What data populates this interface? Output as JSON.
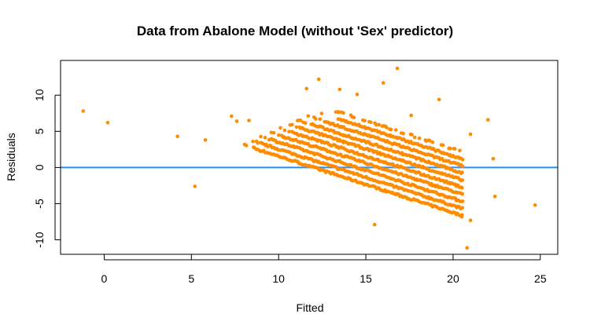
{
  "chart_data": {
    "type": "scatter",
    "title": "Data from Abalone Model (without 'Sex' predictor)",
    "xlabel": "Fitted",
    "ylabel": "Residuals",
    "xlim": [
      -2.5,
      26
    ],
    "ylim": [
      -12,
      14.8
    ],
    "x_ticks": [
      0,
      5,
      10,
      15,
      20,
      25
    ],
    "y_ticks": [
      -10,
      -5,
      0,
      5,
      10
    ],
    "grid": false,
    "point_color": "#ff8c00",
    "reference_line": {
      "y": 0,
      "color": "#1e90ff"
    },
    "outliers": [
      [
        -1.2,
        7.8
      ],
      [
        0.2,
        6.2
      ],
      [
        4.2,
        4.3
      ],
      [
        5.2,
        -2.6
      ],
      [
        5.8,
        3.8
      ],
      [
        7.3,
        7.1
      ],
      [
        7.6,
        6.4
      ],
      [
        8.3,
        6.5
      ],
      [
        11.6,
        10.9
      ],
      [
        12.3,
        12.2
      ],
      [
        13.5,
        10.8
      ],
      [
        14.5,
        10.1
      ],
      [
        16,
        11.7
      ],
      [
        16.8,
        13.7
      ],
      [
        19.2,
        9.4
      ],
      [
        20.8,
        -11.1
      ],
      [
        21.0,
        -7.3
      ],
      [
        22.0,
        6.6
      ],
      [
        22.3,
        1.2
      ],
      [
        22.4,
        -4.0
      ],
      [
        24.7,
        -5.2
      ],
      [
        21.0,
        4.6
      ],
      [
        15.5,
        -7.9
      ],
      [
        20.5,
        -6.8
      ],
      [
        17.6,
        7.2
      ]
    ],
    "bands": {
      "slope": -0.78,
      "spacing": 0.98,
      "offsets": [
        -3,
        -2,
        -1,
        0,
        1,
        2,
        3,
        4,
        5,
        6
      ],
      "x_range": [
        6.0,
        20.6
      ],
      "envelope_top": [
        [
          6,
          0.8
        ],
        [
          8,
          3.2
        ],
        [
          10,
          5.5
        ],
        [
          12,
          7.5
        ],
        [
          14,
          7.8
        ],
        [
          16,
          6.5
        ],
        [
          18,
          5.0
        ],
        [
          20,
          3.0
        ]
      ],
      "envelope_bottom": [
        [
          6,
          -2.0
        ],
        [
          8,
          -2.8
        ],
        [
          10,
          -3.2
        ],
        [
          12,
          -3.8
        ],
        [
          14,
          -4.5
        ],
        [
          16,
          -5.5
        ],
        [
          18,
          -7.0
        ],
        [
          20,
          -8.0
        ]
      ]
    }
  }
}
